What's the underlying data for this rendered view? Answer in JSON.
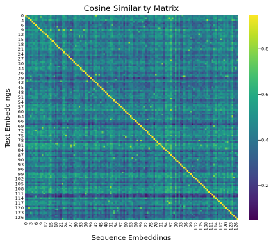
{
  "chart_data": {
    "type": "heatmap",
    "title": "Cosine Similarity Matrix",
    "xlabel": "Sequence Embeddings",
    "ylabel": "Text Embeddings",
    "n": 128,
    "y_ticks": [
      "0",
      "3",
      "6",
      "9",
      "12",
      "15",
      "18",
      "21",
      "24",
      "27",
      "30",
      "33",
      "36",
      "39",
      "42",
      "45",
      "48",
      "51",
      "54",
      "57",
      "60",
      "63",
      "66",
      "69",
      "72",
      "75",
      "78",
      "81",
      "84",
      "87",
      "90",
      "93",
      "96",
      "99",
      "102",
      "105",
      "108",
      "111",
      "114",
      "117",
      "120",
      "123",
      "126"
    ],
    "x_ticks": [
      "0",
      "3",
      "6",
      "9",
      "12",
      "15",
      "18",
      "21",
      "24",
      "27",
      "30",
      "33",
      "36",
      "39",
      "42",
      "45",
      "48",
      "51",
      "54",
      "57",
      "60",
      "63",
      "66",
      "69",
      "72",
      "75",
      "78",
      "81",
      "84",
      "87",
      "90",
      "93",
      "96",
      "99",
      "102",
      "105",
      "108",
      "111",
      "114",
      "117",
      "120",
      "123",
      "126"
    ],
    "colorbar": {
      "min": 0.05,
      "max": 0.95,
      "ticks": [
        {
          "value": 0.2,
          "label": "0.2"
        },
        {
          "value": 0.4,
          "label": "0.4"
        },
        {
          "value": 0.6,
          "label": "0.6"
        },
        {
          "value": 0.8,
          "label": "0.8"
        }
      ],
      "colormap": "viridis"
    },
    "diagonal_value": 0.95,
    "typical_offdiag_range": [
      0.3,
      0.55
    ],
    "grid": false
  }
}
